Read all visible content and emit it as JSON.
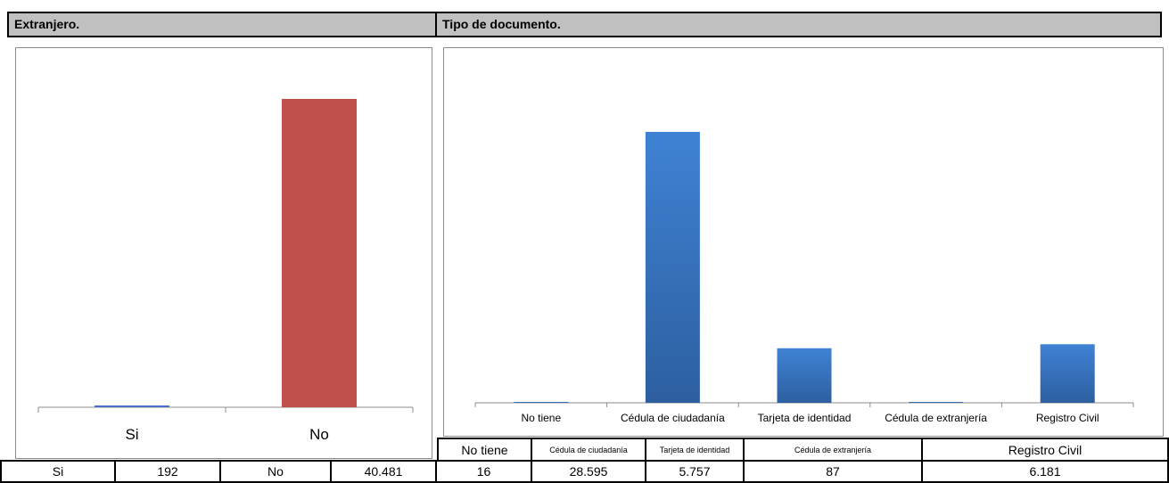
{
  "headers": {
    "left": "Extranjero.",
    "right": "Tipo de documento."
  },
  "chart_data": [
    {
      "type": "bar",
      "categories": [
        "Si",
        "No"
      ],
      "values": [
        192,
        40481
      ],
      "colors": [
        "#4472c4",
        "#c0504d"
      ],
      "ylim": [
        0,
        40481
      ]
    },
    {
      "type": "bar",
      "categories": [
        "No tiene",
        "Cédula de ciudadanía",
        "Tarjeta de identidad",
        "Cédula de extranjería",
        "Registro Civil"
      ],
      "values": [
        16,
        28595,
        5757,
        87,
        6181
      ],
      "colors": [
        "#3a7ccb"
      ],
      "ylim": [
        0,
        28595
      ]
    }
  ],
  "table_right_header": [
    "No tiene",
    "Cédula de ciudadanía",
    "Tarjeta de identidad",
    "Cédula de extranjería",
    "Registro Civil"
  ],
  "table_bottom": [
    "Si",
    "192",
    "No",
    "40.481",
    "16",
    "28.595",
    "5.757",
    "87",
    "6.181"
  ]
}
